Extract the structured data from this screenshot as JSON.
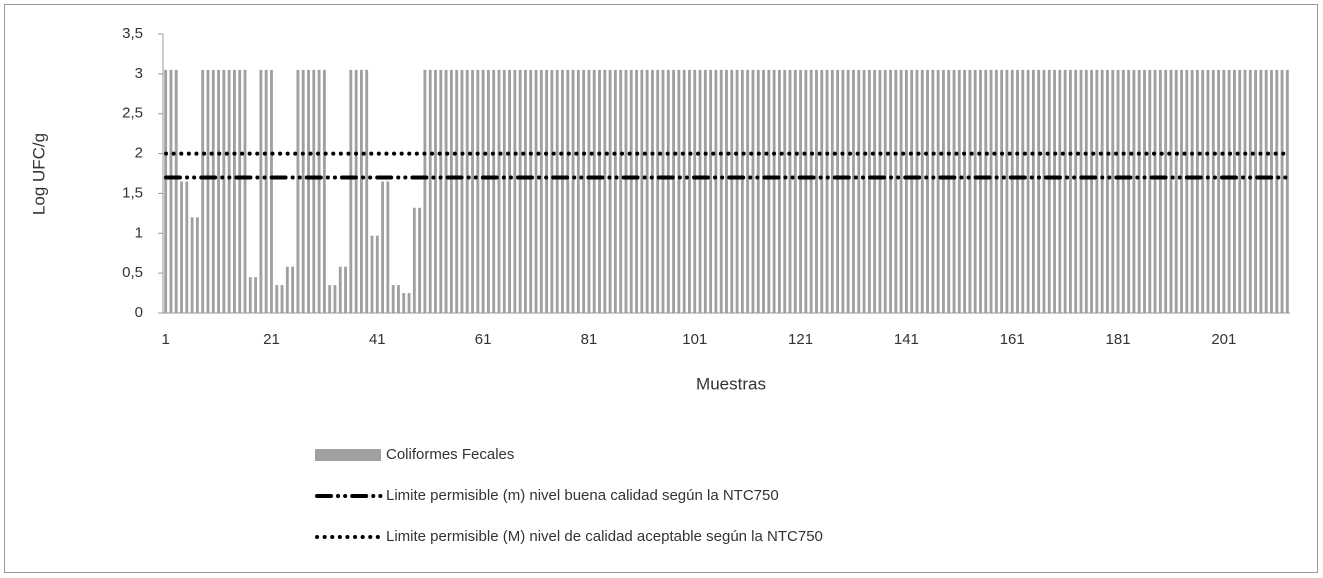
{
  "chart_data": {
    "type": "bar",
    "xlabel": "Muestras",
    "ylabel": "Log UFC/g",
    "categories": [
      1,
      null,
      null,
      null,
      null,
      null,
      null,
      null,
      null,
      null,
      null,
      null,
      null,
      null,
      null,
      null,
      null,
      null,
      null,
      null,
      21,
      null,
      null,
      null,
      null,
      null,
      null,
      null,
      null,
      null,
      null,
      null,
      null,
      null,
      null,
      null,
      null,
      null,
      null,
      null,
      41,
      null,
      null,
      null,
      null,
      null,
      null,
      null,
      null,
      null,
      null,
      null,
      null,
      null,
      null,
      null,
      null,
      null,
      null,
      null,
      61,
      null,
      null,
      null,
      null,
      null,
      null,
      null,
      null,
      null,
      null,
      null,
      null,
      null,
      null,
      null,
      null,
      null,
      null,
      null,
      81,
      null,
      null,
      null,
      null,
      null,
      null,
      null,
      null,
      null,
      null,
      null,
      null,
      null,
      null,
      null,
      null,
      null,
      null,
      null,
      101,
      null,
      null,
      null,
      null,
      null,
      null,
      null,
      null,
      null,
      null,
      null,
      null,
      null,
      null,
      null,
      null,
      null,
      null,
      null,
      121,
      null,
      null,
      null,
      null,
      null,
      null,
      null,
      null,
      null,
      null,
      null,
      null,
      null,
      null,
      null,
      null,
      null,
      null,
      null,
      141,
      null,
      null,
      null,
      null,
      null,
      null,
      null,
      null,
      null,
      null,
      null,
      null,
      null,
      null,
      null,
      null,
      null,
      null,
      null,
      161,
      null,
      null,
      null,
      null,
      null,
      null,
      null,
      null,
      null,
      null,
      null,
      null,
      null,
      null,
      null,
      null,
      null,
      null,
      null,
      181,
      null,
      null,
      null,
      null,
      null,
      null,
      null,
      null,
      null,
      null,
      null,
      null,
      null,
      null,
      null,
      null,
      null,
      null,
      null,
      201,
      null,
      null,
      null,
      null,
      null,
      null,
      null,
      null,
      null,
      null,
      null,
      null
    ],
    "series": [
      {
        "name": "Coliformes Fecales",
        "color": "#a0a0a0",
        "values": [
          3.05,
          3.05,
          3.05,
          1.65,
          1.65,
          1.2,
          1.2,
          3.05,
          3.05,
          3.05,
          3.05,
          3.05,
          3.05,
          3.05,
          3.05,
          3.05,
          0.45,
          0.45,
          3.05,
          3.05,
          3.05,
          0.35,
          0.35,
          0.58,
          0.58,
          3.05,
          3.05,
          3.05,
          3.05,
          3.05,
          3.05,
          0.35,
          0.35,
          0.58,
          0.58,
          3.05,
          3.05,
          3.05,
          3.05,
          0.97,
          0.97,
          1.65,
          1.65,
          0.35,
          0.35,
          0.25,
          0.25,
          1.32,
          1.32,
          3.05,
          3.05,
          3.05,
          3.05,
          3.05,
          3.05,
          3.05,
          3.05,
          3.05,
          3.05,
          3.05,
          3.05,
          3.05,
          3.05,
          3.05,
          3.05,
          3.05,
          3.05,
          3.05,
          3.05,
          3.05,
          3.05,
          3.05,
          3.05,
          3.05,
          3.05,
          3.05,
          3.05,
          3.05,
          3.05,
          3.05,
          3.05,
          3.05,
          3.05,
          3.05,
          3.05,
          3.05,
          3.05,
          3.05,
          3.05,
          3.05,
          3.05,
          3.05,
          3.05,
          3.05,
          3.05,
          3.05,
          3.05,
          3.05,
          3.05,
          3.05,
          3.05,
          3.05,
          3.05,
          3.05,
          3.05,
          3.05,
          3.05,
          3.05,
          3.05,
          3.05,
          3.05,
          3.05,
          3.05,
          3.05,
          3.05,
          3.05,
          3.05,
          3.05,
          3.05,
          3.05,
          3.05,
          3.05,
          3.05,
          3.05,
          3.05,
          3.05,
          3.05,
          3.05,
          3.05,
          3.05,
          3.05,
          3.05,
          3.05,
          3.05,
          3.05,
          3.05,
          3.05,
          3.05,
          3.05,
          3.05,
          3.05,
          3.05,
          3.05,
          3.05,
          3.05,
          3.05,
          3.05,
          3.05,
          3.05,
          3.05,
          3.05,
          3.05,
          3.05,
          3.05,
          3.05,
          3.05,
          3.05,
          3.05,
          3.05,
          3.05,
          3.05,
          3.05,
          3.05,
          3.05,
          3.05,
          3.05,
          3.05,
          3.05,
          3.05,
          3.05,
          3.05,
          3.05,
          3.05,
          3.05,
          3.05,
          3.05,
          3.05,
          3.05,
          3.05,
          3.05,
          3.05,
          3.05,
          3.05,
          3.05,
          3.05,
          3.05,
          3.05,
          3.05,
          3.05,
          3.05,
          3.05,
          3.05,
          3.05,
          3.05,
          3.05,
          3.05,
          3.05,
          3.05,
          3.05,
          3.05,
          3.05,
          3.05,
          3.05,
          3.05,
          3.05,
          3.05,
          3.05,
          3.05,
          3.05,
          3.05,
          3.05,
          3.05,
          3.05
        ]
      }
    ],
    "reference_lines": [
      {
        "name": "Limite permisible (m) nivel buena calidad según la NTC750",
        "value": 1.7,
        "color": "#000000",
        "style": "dashdot"
      },
      {
        "name": "Limite permisible (M) nivel de calidad aceptable según la NTC750",
        "value": 2,
        "color": "#000000",
        "style": "dotted"
      }
    ],
    "ylim": [
      0,
      3.5
    ],
    "yticks": [
      0,
      {
        "value": 0.5,
        "label": "0,5"
      },
      1,
      {
        "value": 1.5,
        "label": "1,5"
      },
      2,
      {
        "value": 2.5,
        "label": "2,5"
      },
      3,
      {
        "value": 3.5,
        "label": "3,5"
      }
    ],
    "grid": false,
    "legend": "bottom"
  }
}
